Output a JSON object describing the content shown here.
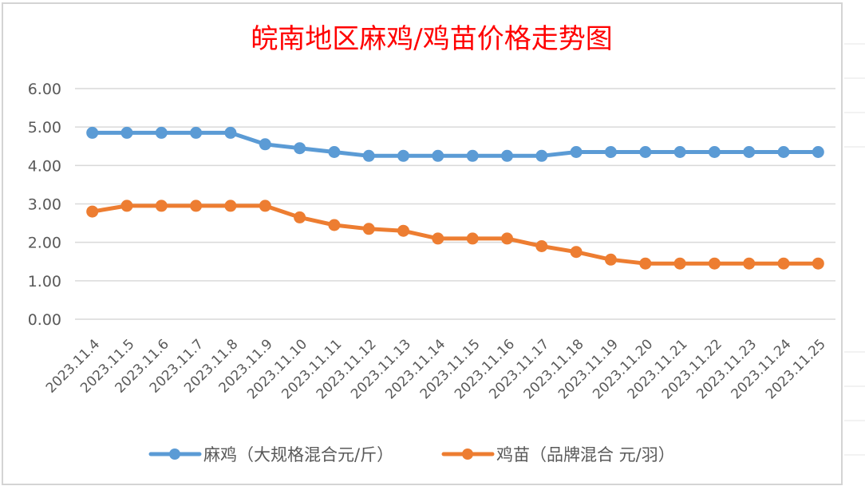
{
  "chart_data": {
    "type": "line",
    "title": "皖南地区麻鸡/鸡苗价格走势图",
    "xlabel": "",
    "ylabel": "",
    "ylim": [
      0,
      6
    ],
    "yticks": [
      "0.00",
      "1.00",
      "2.00",
      "3.00",
      "4.00",
      "5.00",
      "6.00"
    ],
    "grid": true,
    "legend_position": "bottom",
    "categories": [
      "2023.11.4",
      "2023.11.5",
      "2023.11.6",
      "2023.11.7",
      "2023.11.8",
      "2023.11.9",
      "2023.11.10",
      "2023.11.11",
      "2023.11.12",
      "2023.11.13",
      "2023.11.14",
      "2023.11.15",
      "2023.11.16",
      "2023.11.17",
      "2023.11.18",
      "2023.11.19",
      "2023.11.20",
      "2023.11.21",
      "2023.11.22",
      "2023.11.23",
      "2023.11.24",
      "2023.11.25"
    ],
    "series": [
      {
        "name": "麻鸡（大规格混合元/斤）",
        "color": "#5b9bd5",
        "values": [
          4.85,
          4.85,
          4.85,
          4.85,
          4.85,
          4.55,
          4.45,
          4.35,
          4.25,
          4.25,
          4.25,
          4.25,
          4.25,
          4.25,
          4.35,
          4.35,
          4.35,
          4.35,
          4.35,
          4.35,
          4.35,
          4.35
        ]
      },
      {
        "name": "鸡苗（品牌混合 元/羽）",
        "color": "#ed7d31",
        "values": [
          2.8,
          2.95,
          2.95,
          2.95,
          2.95,
          2.95,
          2.65,
          2.45,
          2.35,
          2.3,
          2.1,
          2.1,
          2.1,
          1.9,
          1.75,
          1.55,
          1.45,
          1.45,
          1.45,
          1.45,
          1.45,
          1.45
        ]
      }
    ]
  }
}
